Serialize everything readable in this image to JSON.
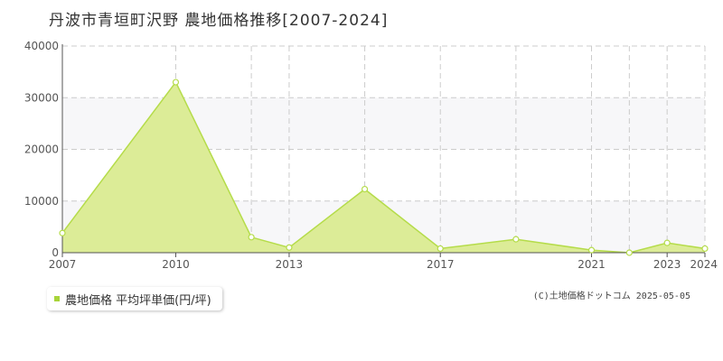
{
  "title": "丹波市青垣町沢野 農地価格推移[2007-2024]",
  "legend_label": "農地価格 平均坪単価(円/坪)",
  "copyright": "(C)土地価格ドットコム 2025-05-05",
  "colors": {
    "fill": "#dcec97",
    "line": "#b5dc4a",
    "point_stroke": "#b5dc4a",
    "grid": "#cccccc",
    "band": "#f7f7f9",
    "axis": "#555555"
  },
  "chart_data": {
    "type": "area",
    "x": [
      2007,
      2010,
      2012,
      2013,
      2015,
      2017,
      2019,
      2021,
      2022,
      2023,
      2024
    ],
    "series": [
      {
        "name": "農地価格 平均坪単価(円/坪)",
        "values": [
          3800,
          33000,
          3000,
          1000,
          12300,
          800,
          2600,
          500,
          0,
          1900,
          800
        ]
      }
    ],
    "x_ticks": [
      2007,
      2010,
      2013,
      2017,
      2021,
      2023,
      2024
    ],
    "x_grid": [
      2007,
      2010,
      2012,
      2013,
      2015,
      2017,
      2019,
      2021,
      2022,
      2023,
      2024
    ],
    "y_ticks": [
      0,
      10000,
      20000,
      30000,
      40000
    ],
    "xlim": [
      2007,
      2024
    ],
    "ylim": [
      0,
      40000
    ],
    "grid": true,
    "xlabel": "",
    "ylabel": ""
  }
}
